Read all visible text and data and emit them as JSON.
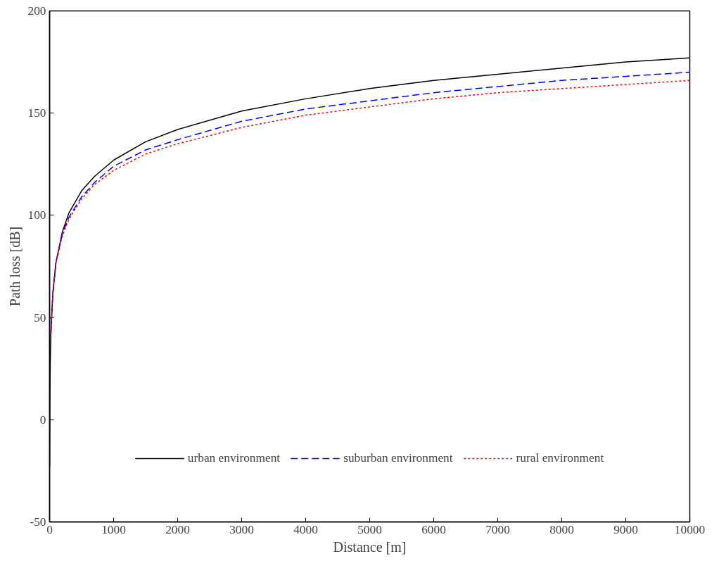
{
  "chart_data": {
    "type": "line",
    "xlabel": "Distance [m]",
    "ylabel": "Path loss [dB]",
    "x": [
      1,
      5,
      10,
      20,
      50,
      100,
      200,
      300,
      500,
      700,
      1000,
      1500,
      2000,
      3000,
      4000,
      5000,
      6000,
      7000,
      8000,
      9000,
      10000
    ],
    "series": [
      {
        "name": "urban environment",
        "color": "#000000",
        "line_style": "solid",
        "values": [
          -23,
          12,
          27,
          42,
          62,
          77,
          92,
          101,
          112,
          119,
          127,
          136,
          142,
          151,
          157,
          162,
          166,
          169,
          172,
          175,
          177
        ]
      },
      {
        "name": "suburban environment",
        "color": "#0000ff",
        "line_style": "dashed",
        "x": [
          20,
          50,
          100,
          200,
          300,
          500,
          700,
          1000,
          1500,
          2000,
          3000,
          4000,
          5000,
          6000,
          7000,
          8000,
          9000,
          10000
        ],
        "values": [
          42,
          61,
          77,
          91,
          99,
          109,
          116,
          124,
          132,
          137,
          146,
          152,
          156,
          160,
          163,
          166,
          168,
          170
        ]
      },
      {
        "name": "rural environment",
        "color": "#ff0000",
        "line_style": "dotted",
        "x": [
          20,
          50,
          100,
          200,
          300,
          500,
          700,
          1000,
          1500,
          2000,
          3000,
          4000,
          5000,
          6000,
          7000,
          8000,
          9000,
          10000
        ],
        "values": [
          42,
          61,
          77,
          90,
          98,
          108,
          115,
          122,
          130,
          135,
          143,
          149,
          153,
          157,
          160,
          162,
          164,
          166
        ]
      }
    ],
    "xlim": [
      0,
      10000
    ],
    "xticks": [
      0,
      1000,
      2000,
      3000,
      4000,
      5000,
      6000,
      7000,
      8000,
      9000,
      10000
    ],
    "ylim": [
      -50,
      200
    ],
    "yticks": [
      -50,
      0,
      50,
      100,
      150,
      200
    ],
    "grid": false,
    "legend": "bottom",
    "marker": "none"
  }
}
